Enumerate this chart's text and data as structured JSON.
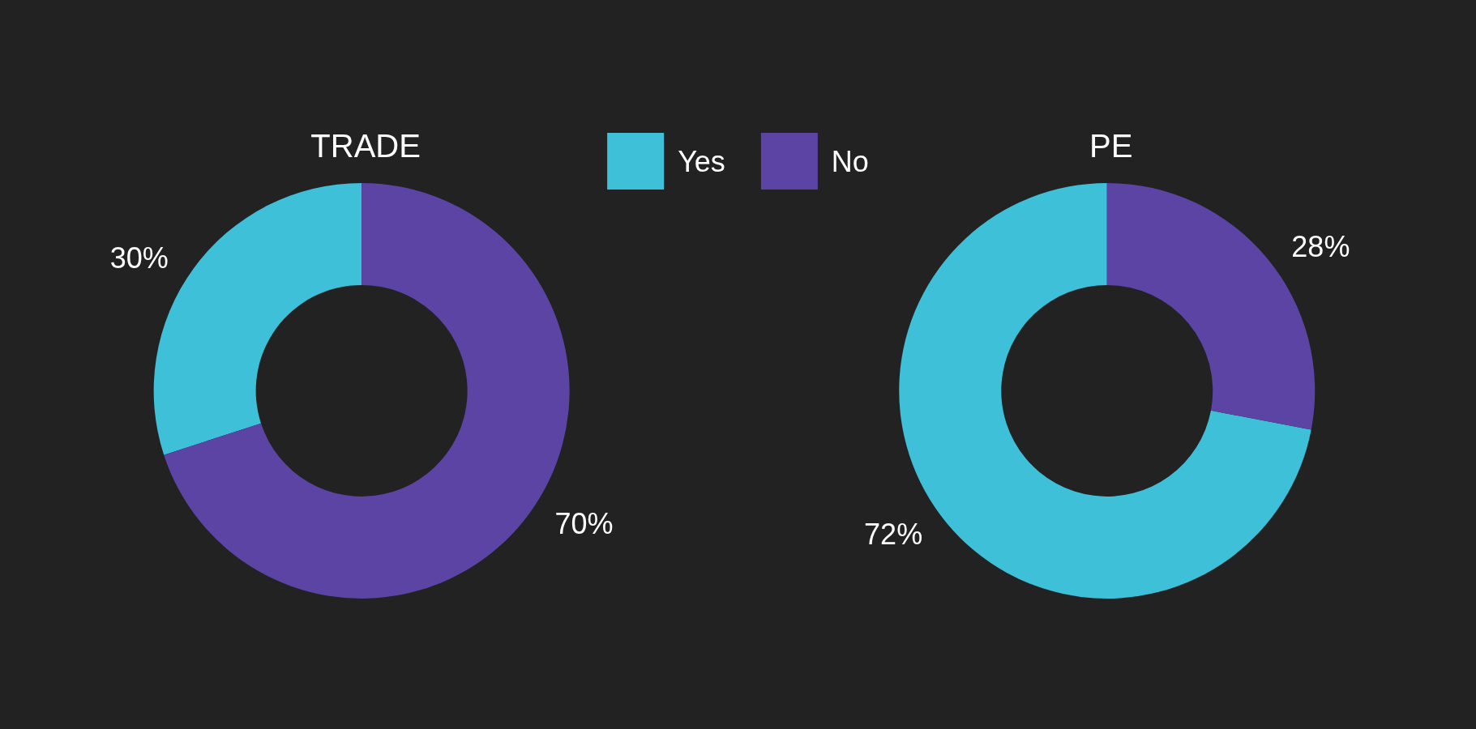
{
  "chart_data": {
    "type": "donut",
    "categories": [
      "Yes",
      "No"
    ],
    "colors": [
      "#3dc0d8",
      "#5c44a5"
    ],
    "series": [
      {
        "name": "TRADE",
        "values": [
          30,
          70
        ],
        "value_labels": [
          "30%",
          "70%"
        ]
      },
      {
        "name": "PE",
        "values": [
          72,
          28
        ],
        "value_labels": [
          "72%",
          "28%"
        ]
      }
    ],
    "legend": "top"
  }
}
